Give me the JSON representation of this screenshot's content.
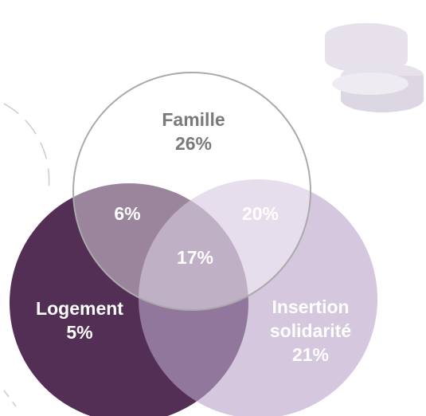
{
  "chart_data": {
    "type": "venn",
    "sets": [
      {
        "name": "Famille",
        "value": 26,
        "value_label": "26%",
        "color": "#ffffff"
      },
      {
        "name": "Logement",
        "value": 5,
        "value_label": "5%",
        "color": "#532e55"
      },
      {
        "name": "Insertion solidarité",
        "value": 21,
        "value_label": "21%",
        "color": "#b9a4c9"
      }
    ],
    "overlaps": [
      {
        "sets": [
          0,
          1
        ],
        "value": 6,
        "value_label": "6%"
      },
      {
        "sets": [
          0,
          2
        ],
        "value": 20,
        "value_label": "20%"
      },
      {
        "sets": [
          0,
          1,
          2
        ],
        "value": 17,
        "value_label": "17%"
      }
    ]
  }
}
